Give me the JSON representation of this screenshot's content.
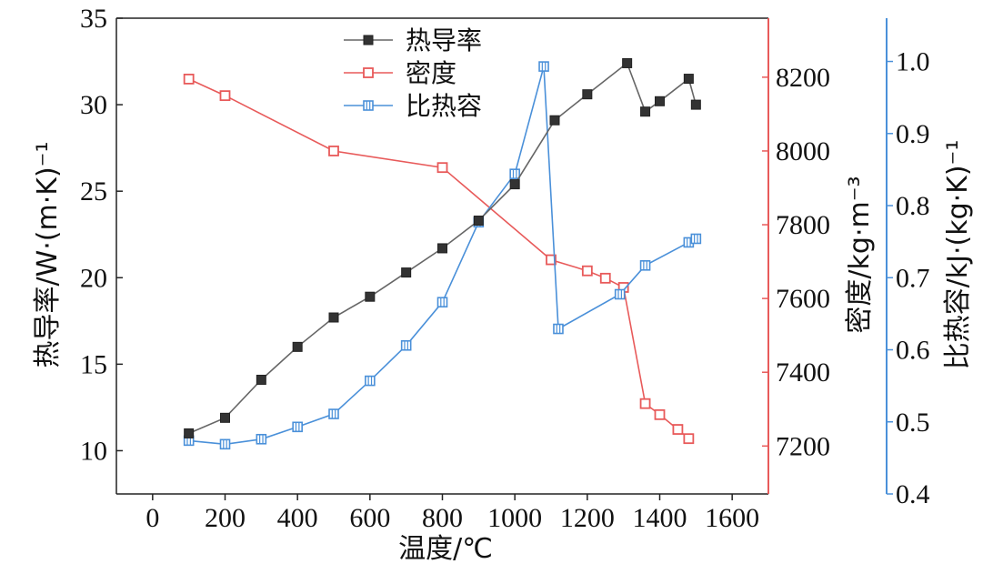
{
  "chart_data": {
    "type": "line",
    "xlabel": "温度/℃",
    "xlim": [
      -100,
      1700
    ],
    "xticks": [
      0,
      200,
      400,
      600,
      800,
      1000,
      1200,
      1400,
      1600
    ],
    "xtick_labels": [
      "0",
      "200",
      "400",
      "600",
      "800",
      "1000",
      "1200",
      "1400",
      "1600"
    ],
    "axes": {
      "left": {
        "label": "热导率/W·(m·K)⁻¹",
        "lim": [
          7.5,
          35
        ],
        "ticks": [
          10,
          15,
          20,
          25,
          30,
          35
        ],
        "color": "#111111"
      },
      "right1": {
        "label": "密度/kg·m⁻³",
        "lim": [
          7070,
          8360
        ],
        "ticks": [
          7200,
          7400,
          7600,
          7800,
          8000,
          8200
        ],
        "color": "#e85a5a"
      },
      "right2": {
        "label": "比热容/kJ·(kg·K)⁻¹",
        "lim": [
          0.4,
          1.06
        ],
        "ticks": [
          0.4,
          0.5,
          0.6,
          0.7,
          0.8,
          0.9,
          1.0
        ],
        "tick_labels": [
          "0.4",
          "0.5",
          "0.6",
          "0.7",
          "0.8",
          "0.9",
          "1.0"
        ],
        "color": "#4a90d9"
      }
    },
    "series": [
      {
        "name": "热导率",
        "axis": "left",
        "color": "#666666",
        "marker": "filled-square",
        "x": [
          100,
          200,
          300,
          400,
          500,
          600,
          700,
          800,
          900,
          1000,
          1110,
          1200,
          1310,
          1360,
          1400,
          1480,
          1500
        ],
        "y": [
          11.0,
          11.9,
          14.1,
          16.0,
          17.7,
          18.9,
          20.3,
          21.7,
          23.3,
          25.4,
          29.1,
          30.6,
          32.4,
          29.6,
          30.2,
          31.5,
          30.0
        ]
      },
      {
        "name": "密度",
        "axis": "right1",
        "color": "#e85a5a",
        "marker": "open-square",
        "x": [
          100,
          200,
          500,
          800,
          1100,
          1200,
          1250,
          1300,
          1360,
          1400,
          1450,
          1480
        ],
        "y": [
          8195,
          8150,
          8000,
          7955,
          7705,
          7675,
          7655,
          7630,
          7315,
          7285,
          7245,
          7220
        ]
      },
      {
        "name": "比热容",
        "axis": "right2",
        "color": "#4a90d9",
        "marker": "hatched-square",
        "x": [
          100,
          200,
          300,
          400,
          500,
          600,
          700,
          800,
          900,
          1000,
          1080,
          1120,
          1290,
          1360,
          1480,
          1500
        ],
        "y": [
          0.474,
          0.469,
          0.476,
          0.493,
          0.511,
          0.557,
          0.606,
          0.666,
          0.777,
          0.844,
          0.993,
          0.629,
          0.677,
          0.717,
          0.749,
          0.754
        ]
      }
    ],
    "legend": {
      "position": "top-center",
      "entries": [
        "热导率",
        "密度",
        "比热容"
      ]
    },
    "grid": false
  }
}
